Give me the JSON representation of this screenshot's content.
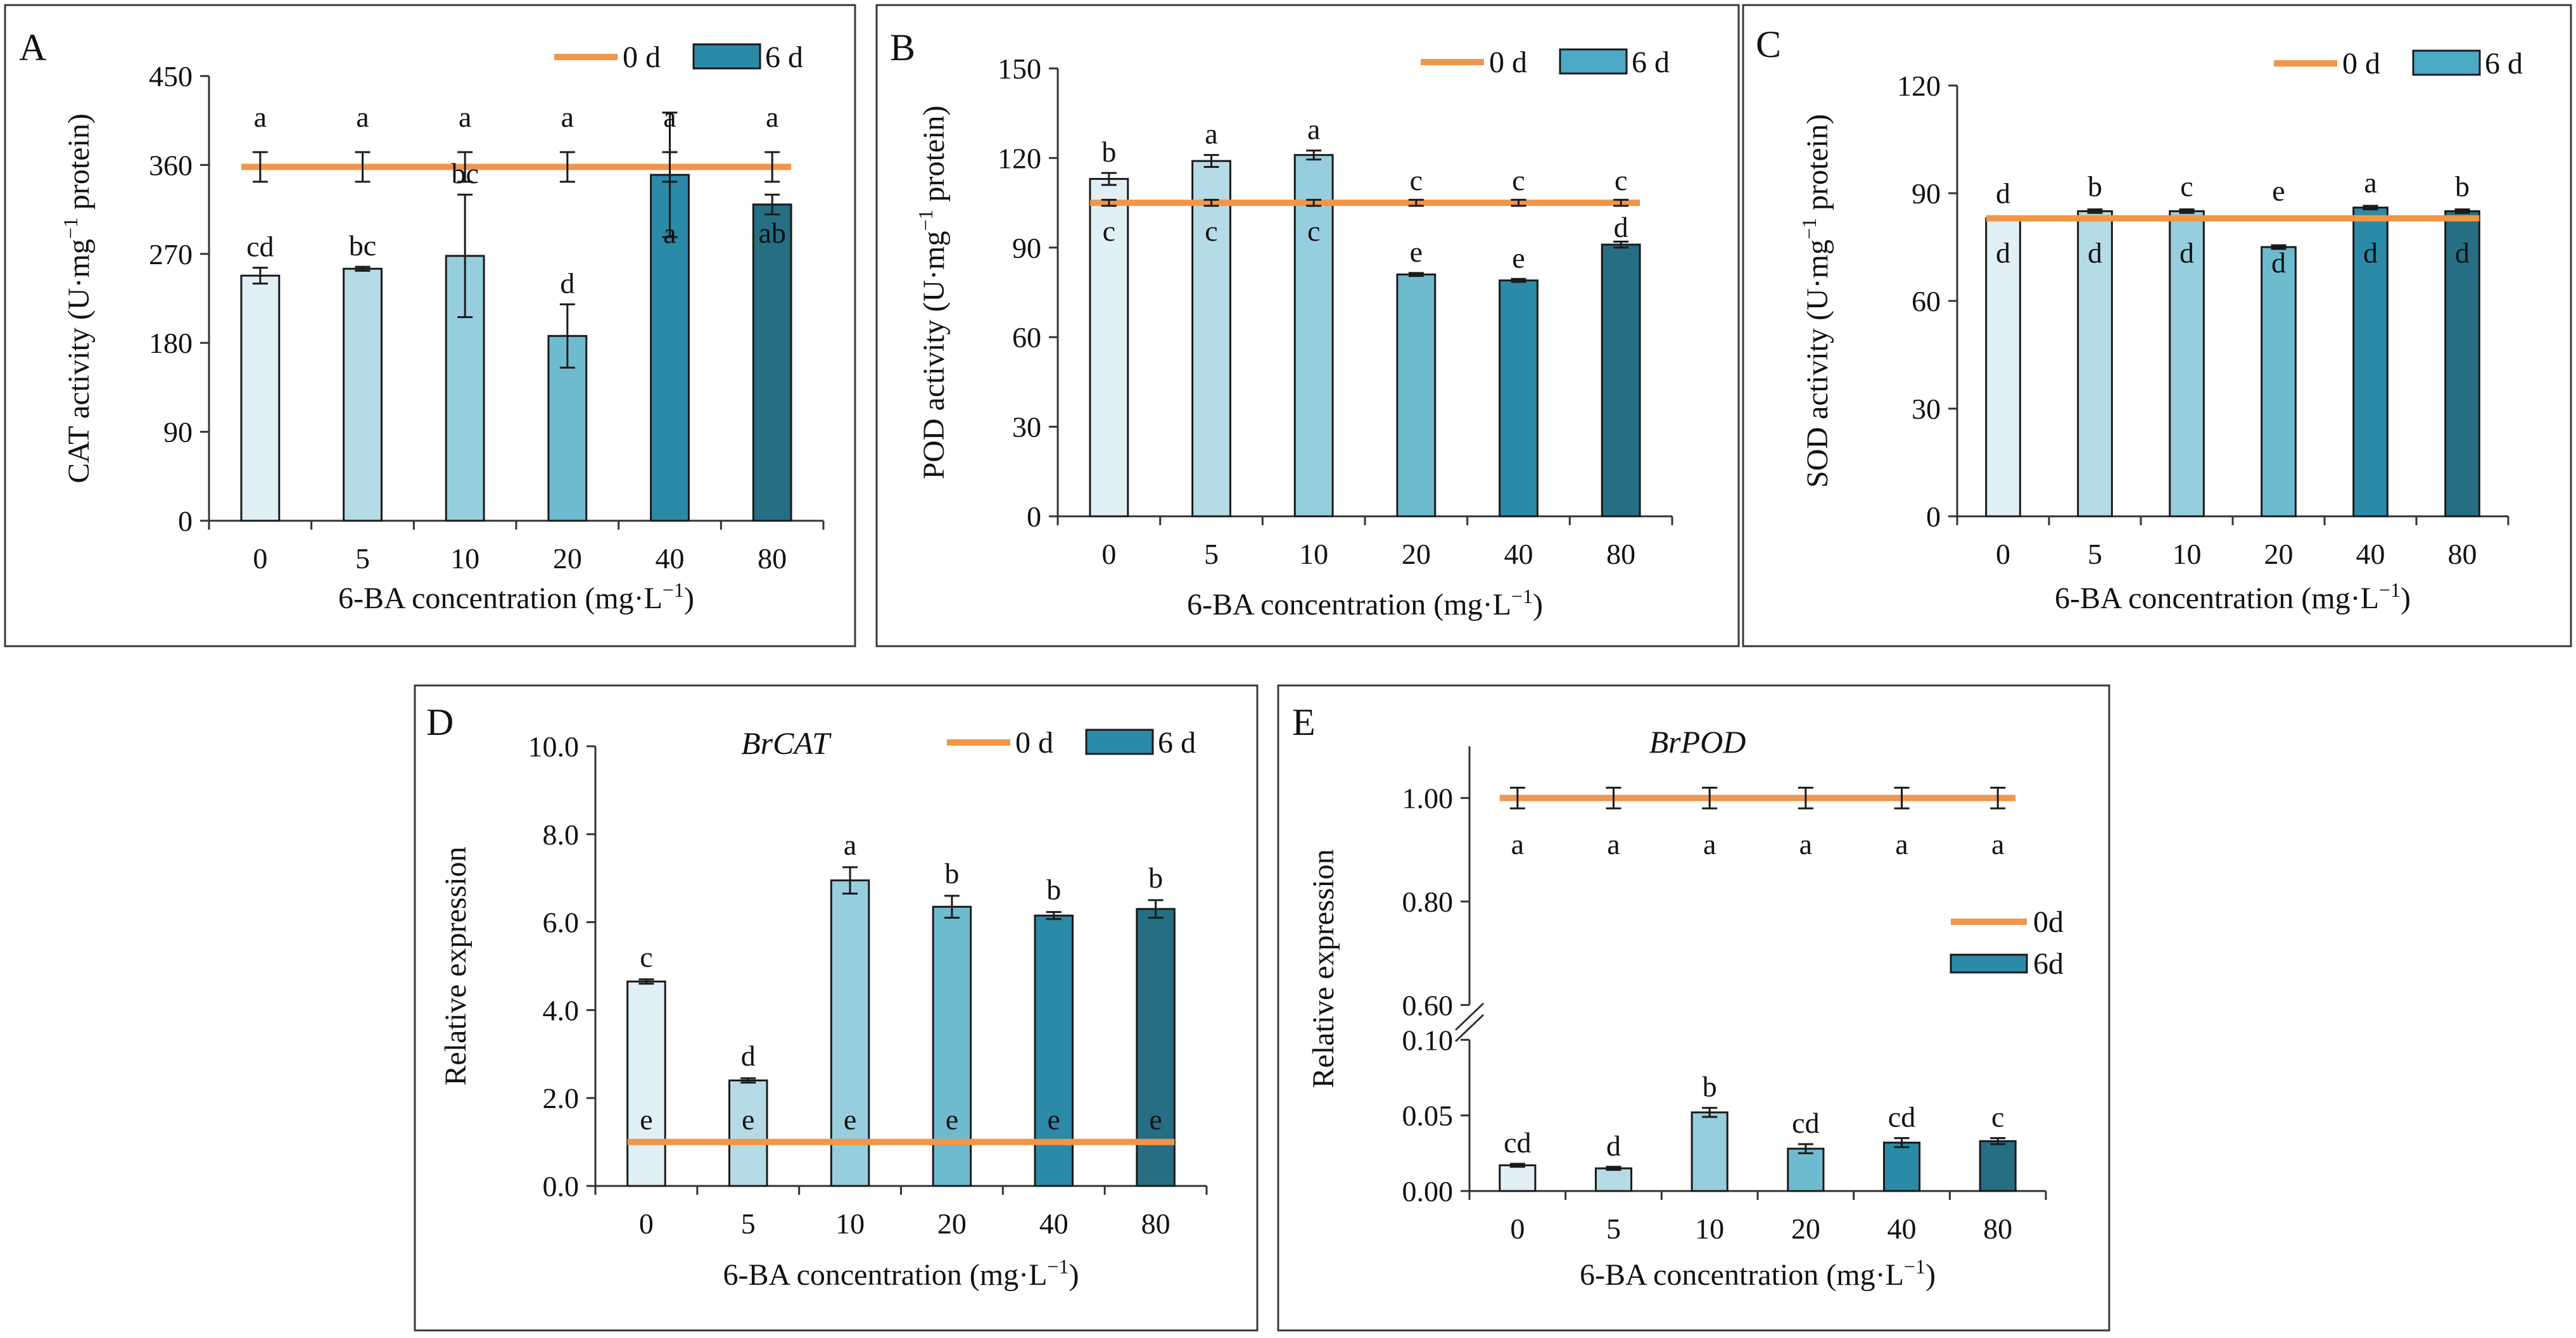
{
  "colors": {
    "line": "#F0964A",
    "bars": [
      "#E0F0F6",
      "#B5DCE6",
      "#97CEDD",
      "#6EBBD0",
      "#2B8AA8",
      "#266E84"
    ],
    "legend_bar_wide": "#4BAAC6",
    "legend_bar_narrow": "#2B8AA8"
  },
  "chart_data": [
    {
      "id": "A",
      "type": "bar",
      "panel": "A",
      "gene": "",
      "categories": [
        "0",
        "5",
        "10",
        "20",
        "40",
        "80"
      ],
      "xlabel": "6-BA concentration (mg·L⁻¹)",
      "ylabel": "CAT activity (U·mg⁻¹ protein)",
      "ylim": [
        0,
        450
      ],
      "yticks": [
        "0",
        "90",
        "180",
        "270",
        "360",
        "450"
      ],
      "legend": [
        "0 d",
        "6 d"
      ],
      "series": [
        {
          "name": "6 d",
          "values": [
            248,
            255,
            268,
            187,
            350,
            320
          ],
          "errors": [
            8,
            2,
            62,
            32,
            63,
            10
          ],
          "labels": [
            "cd",
            "bc",
            "bc",
            "d",
            "a",
            "ab"
          ]
        },
        {
          "name": "0 d",
          "values": [
            358,
            358,
            358,
            358,
            358,
            358
          ],
          "errors": [
            15,
            15,
            15,
            15,
            15,
            15
          ],
          "labels": [
            "a",
            "a",
            "a",
            "a",
            "a",
            "a"
          ]
        }
      ]
    },
    {
      "id": "B",
      "type": "bar",
      "panel": "B",
      "gene": "",
      "categories": [
        "0",
        "5",
        "10",
        "20",
        "40",
        "80"
      ],
      "xlabel": "6-BA concentration (mg·L⁻¹)",
      "ylabel": "POD activity (U·mg⁻¹ protein)",
      "ylim": [
        0,
        150
      ],
      "yticks": [
        "0",
        "30",
        "60",
        "90",
        "120",
        "150"
      ],
      "legend": [
        "0 d",
        "6 d"
      ],
      "series": [
        {
          "name": "6 d",
          "values": [
            113,
            119,
            121,
            81,
            79,
            91
          ],
          "errors": [
            2,
            2,
            1.5,
            0.5,
            0.5,
            1
          ],
          "labels": [
            "b",
            "a",
            "a",
            "e",
            "e",
            "d"
          ]
        },
        {
          "name": "0 d",
          "values": [
            105,
            105,
            105,
            105,
            105,
            105
          ],
          "errors": [
            1,
            1,
            1,
            1,
            1,
            1
          ],
          "labels": [
            "c",
            "c",
            "c",
            "c",
            "c",
            "c"
          ]
        }
      ]
    },
    {
      "id": "C",
      "type": "bar",
      "panel": "C",
      "gene": "",
      "categories": [
        "0",
        "5",
        "10",
        "20",
        "40",
        "80"
      ],
      "xlabel": "6-BA concentration (mg·L⁻¹)",
      "ylabel": "SOD activity (U·mg⁻¹ protein)",
      "ylim": [
        0,
        120
      ],
      "yticks": [
        "0",
        "30",
        "60",
        "90",
        "120"
      ],
      "legend": [
        "0 d",
        "6 d"
      ],
      "series": [
        {
          "name": "6 d",
          "values": [
            83,
            85,
            85,
            75,
            86,
            85
          ],
          "errors": [
            0.5,
            0.5,
            0.5,
            0.5,
            0.5,
            0.5
          ],
          "labels": [
            "d",
            "b",
            "c",
            "d",
            "a",
            "b"
          ]
        },
        {
          "name": "0 d",
          "values": [
            83,
            83,
            83,
            83,
            83,
            83
          ],
          "errors": [
            0,
            0,
            0,
            0,
            0,
            0
          ],
          "labels": [
            "d",
            "d",
            "d",
            "e",
            "d",
            "d"
          ]
        }
      ]
    },
    {
      "id": "D",
      "type": "bar",
      "panel": "D",
      "gene": "BrCAT",
      "categories": [
        "0",
        "5",
        "10",
        "20",
        "40",
        "80"
      ],
      "xlabel": "6-BA concentration (mg·L⁻¹)",
      "ylabel": "Relative expression",
      "ylim": [
        0,
        10
      ],
      "yticks": [
        "0.0",
        "2.0",
        "4.0",
        "6.0",
        "8.0",
        "10.0"
      ],
      "legend": [
        "0 d",
        "6 d"
      ],
      "series": [
        {
          "name": "6 d",
          "values": [
            4.65,
            2.4,
            6.95,
            6.35,
            6.15,
            6.3
          ],
          "errors": [
            0.05,
            0.05,
            0.3,
            0.25,
            0.08,
            0.2
          ],
          "labels": [
            "c",
            "d",
            "a",
            "b",
            "b",
            "b"
          ]
        },
        {
          "name": "0 d",
          "values": [
            1.0,
            1.0,
            1.0,
            1.0,
            1.0,
            1.0
          ],
          "errors": [
            0,
            0,
            0,
            0,
            0,
            0
          ],
          "labels": [
            "e",
            "e",
            "e",
            "e",
            "e",
            "e"
          ]
        }
      ]
    },
    {
      "id": "E",
      "type": "bar",
      "panel": "E",
      "gene": "BrPOD",
      "categories": [
        "0",
        "5",
        "10",
        "20",
        "40",
        "80"
      ],
      "xlabel": "6-BA concentration (mg·L⁻¹)",
      "ylabel": "Relative expression",
      "ylim": [
        0,
        1.1
      ],
      "axis_break": [
        0.1,
        0.6
      ],
      "yticks": [
        "0.00",
        "0.05",
        "0.10",
        "0.60",
        "0.80",
        "1.00"
      ],
      "legend": [
        "0d",
        "6d"
      ],
      "series": [
        {
          "name": "6d",
          "values": [
            0.017,
            0.015,
            0.052,
            0.028,
            0.032,
            0.033
          ],
          "errors": [
            0.001,
            0.001,
            0.003,
            0.003,
            0.003,
            0.002
          ],
          "labels": [
            "cd",
            "d",
            "b",
            "cd",
            "cd",
            "c"
          ]
        },
        {
          "name": "0d",
          "values": [
            1.0,
            1.0,
            1.0,
            1.0,
            1.0,
            1.0
          ],
          "errors": [
            0.02,
            0.02,
            0.02,
            0.02,
            0.02,
            0.02
          ],
          "labels": [
            "a",
            "a",
            "a",
            "a",
            "a",
            "a"
          ]
        }
      ]
    }
  ]
}
